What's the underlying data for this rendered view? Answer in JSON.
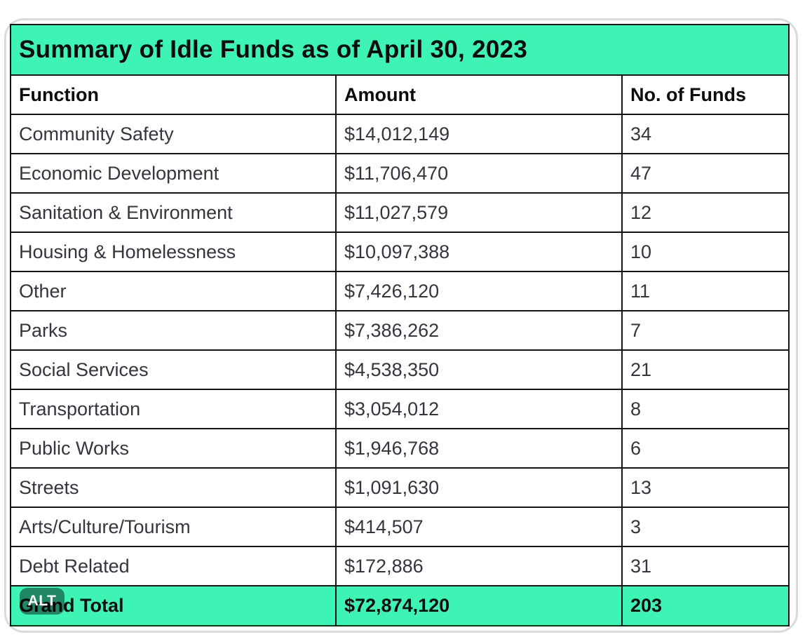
{
  "table": {
    "title": "Summary of Idle Funds as of April 30, 2023",
    "columns": [
      "Function",
      "Amount",
      "No. of Funds"
    ],
    "rows": [
      {
        "function": "Community Safety",
        "amount": "$14,012,149",
        "funds": "34"
      },
      {
        "function": "Economic Development",
        "amount": "$11,706,470",
        "funds": "47"
      },
      {
        "function": "Sanitation & Environment",
        "amount": "$11,027,579",
        "funds": "12"
      },
      {
        "function": "Housing & Homelessness",
        "amount": "$10,097,388",
        "funds": "10"
      },
      {
        "function": "Other",
        "amount": "$7,426,120",
        "funds": "11"
      },
      {
        "function": "Parks",
        "amount": "$7,386,262",
        "funds": "7"
      },
      {
        "function": "Social Services",
        "amount": "$4,538,350",
        "funds": "21"
      },
      {
        "function": "Transportation",
        "amount": "$3,054,012",
        "funds": "8"
      },
      {
        "function": "Public Works",
        "amount": "$1,946,768",
        "funds": "6"
      },
      {
        "function": "Streets",
        "amount": "$1,091,630",
        "funds": "13"
      },
      {
        "function": "Arts/Culture/Tourism",
        "amount": "$414,507",
        "funds": "3"
      },
      {
        "function": "Debt Related",
        "amount": "$172,886",
        "funds": "31"
      }
    ],
    "total": {
      "function": "Grand Total",
      "amount": "$72,874,120",
      "funds": "203"
    }
  },
  "alt_badge": {
    "label": "ALT"
  },
  "colors": {
    "accent": "#3DF4B5",
    "table_border": "#141418",
    "card_border": "#D8DBDF",
    "body_text": "#35353F",
    "heading_text": "#0C0C10",
    "badge_bg": "rgba(0,0,0,0.45)",
    "badge_text": "#FFFFFF"
  },
  "chart_data": {
    "type": "table",
    "title": "Summary of Idle Funds as of April 30, 2023",
    "columns": [
      "Function",
      "Amount",
      "No. of Funds"
    ],
    "categories": [
      "Community Safety",
      "Economic Development",
      "Sanitation & Environment",
      "Housing & Homelessness",
      "Other",
      "Parks",
      "Social Services",
      "Transportation",
      "Public Works",
      "Streets",
      "Arts/Culture/Tourism",
      "Debt Related"
    ],
    "series": [
      {
        "name": "Amount",
        "values": [
          14012149,
          11706470,
          11027579,
          10097388,
          7426120,
          7386262,
          4538350,
          3054012,
          1946768,
          1091630,
          414507,
          172886
        ]
      },
      {
        "name": "No. of Funds",
        "values": [
          34,
          47,
          12,
          10,
          11,
          7,
          21,
          8,
          6,
          13,
          3,
          31
        ]
      }
    ],
    "grand_total": {
      "Amount": 72874120,
      "No. of Funds": 203
    }
  }
}
